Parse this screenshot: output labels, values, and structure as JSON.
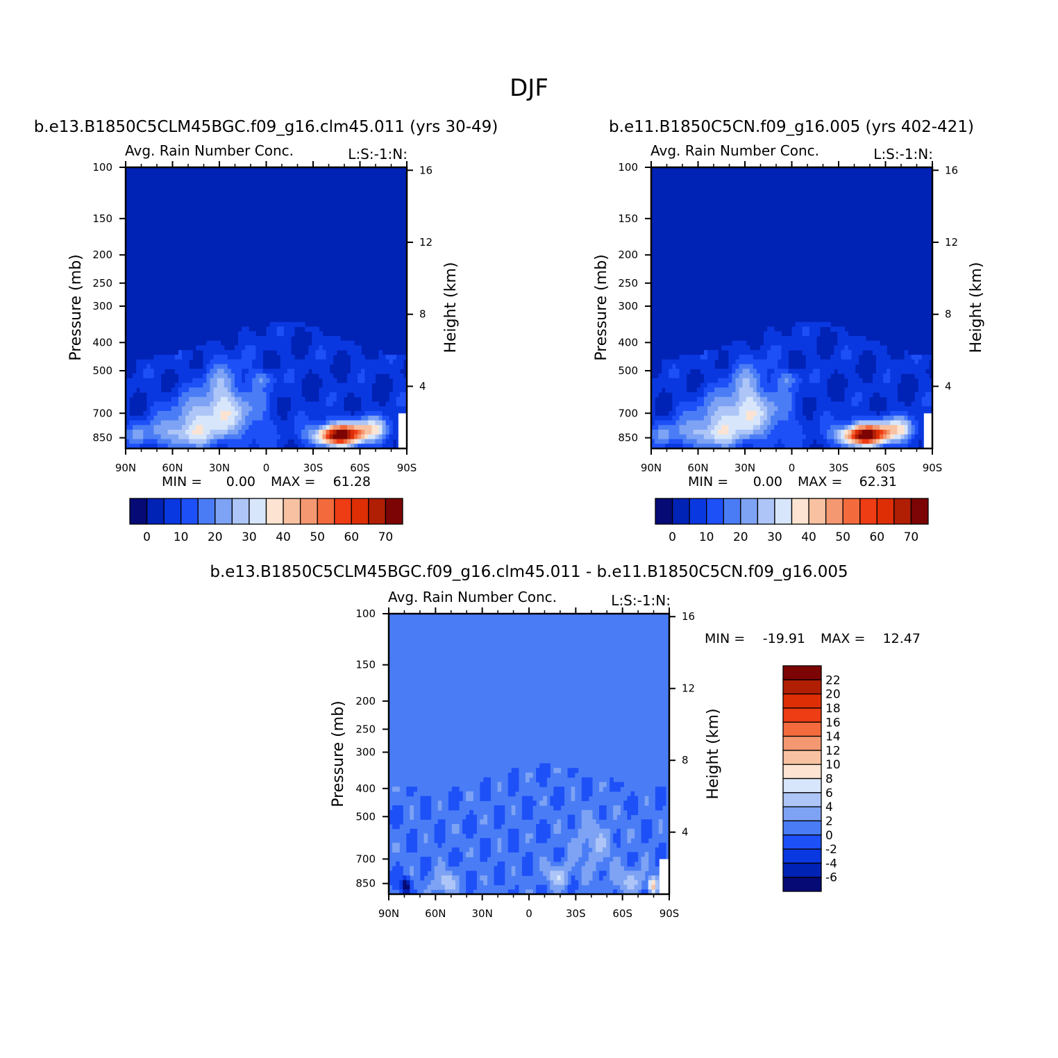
{
  "page_title": "DJF",
  "palettes": {
    "abs": [
      "#050a75",
      "#0022b5",
      "#0a38e0",
      "#1e50f8",
      "#4a7df5",
      "#7ea3f4",
      "#adc5f7",
      "#d7e6fa",
      "#fde4d2",
      "#f8c2a2",
      "#f49872",
      "#f36a3c",
      "#ee3c14",
      "#de2e06",
      "#b01e04",
      "#7c0404"
    ],
    "diff": [
      "#7c0404",
      "#b01e04",
      "#de2e06",
      "#ee3c14",
      "#f36a3c",
      "#f49872",
      "#f8c2a2",
      "#fde4d2",
      "#d7e6fa",
      "#adc5f7",
      "#7ea3f4",
      "#4a7df5",
      "#1e50f8",
      "#0a38e0",
      "#0022b5",
      "#050a75"
    ]
  },
  "chart_data": [
    {
      "type": "heatmap",
      "title": "b.e13.B1850C5CLM45BGC.f09_g16.clm45.011 (yrs 30-49)",
      "subtitle_left": "Avg. Rain Number Conc.",
      "subtitle_right": "L:S:-1:N:",
      "xlabel": "",
      "ylabel": "Pressure (mb)",
      "ylabel_right": "Height (km)",
      "x_ticks": [
        "90N",
        "60N",
        "30N",
        "0",
        "30S",
        "60S",
        "90S"
      ],
      "y_ticks": [
        100,
        150,
        200,
        250,
        300,
        400,
        500,
        700,
        850
      ],
      "y_scale": "log",
      "y_right_ticks": [
        16,
        12,
        8,
        4
      ],
      "min_label": "MIN =",
      "min_value": "0.00",
      "max_label": "MAX =",
      "max_value": "61.28",
      "colorbar_labels": [
        0,
        10,
        20,
        30,
        40,
        50,
        60,
        70
      ]
    },
    {
      "type": "heatmap",
      "title": "b.e11.B1850C5CN.f09_g16.005 (yrs 402-421)",
      "subtitle_left": "Avg. Rain Number Conc.",
      "subtitle_right": "L:S:-1:N:",
      "xlabel": "",
      "ylabel": "Pressure (mb)",
      "ylabel_right": "Height (km)",
      "x_ticks": [
        "90N",
        "60N",
        "30N",
        "0",
        "30S",
        "60S",
        "90S"
      ],
      "y_ticks": [
        100,
        150,
        200,
        250,
        300,
        400,
        500,
        700,
        850
      ],
      "y_scale": "log",
      "y_right_ticks": [
        16,
        12,
        8,
        4
      ],
      "min_label": "MIN =",
      "min_value": "0.00",
      "max_label": "MAX =",
      "max_value": "62.31",
      "colorbar_labels": [
        0,
        10,
        20,
        30,
        40,
        50,
        60,
        70
      ]
    },
    {
      "type": "heatmap",
      "title": "b.e13.B1850C5CLM45BGC.f09_g16.clm45.011 - b.e11.B1850C5CN.f09_g16.005",
      "subtitle_left": "Avg. Rain Number Conc.",
      "subtitle_right": "L:S:-1:N:",
      "xlabel": "",
      "ylabel": "Pressure (mb)",
      "ylabel_right": "Height (km)",
      "x_ticks": [
        "90N",
        "60N",
        "30N",
        "0",
        "30S",
        "60S",
        "90S"
      ],
      "y_ticks": [
        100,
        150,
        200,
        250,
        300,
        400,
        500,
        700,
        850
      ],
      "y_scale": "log",
      "y_right_ticks": [
        16,
        12,
        8,
        4
      ],
      "min_label": "MIN =",
      "min_value": "-19.91",
      "max_label": "MAX =",
      "max_value": "12.47",
      "colorbar_labels": [
        22,
        20,
        18,
        16,
        14,
        12,
        10,
        8,
        6,
        4,
        2,
        0,
        -2,
        -4,
        -6
      ]
    }
  ]
}
